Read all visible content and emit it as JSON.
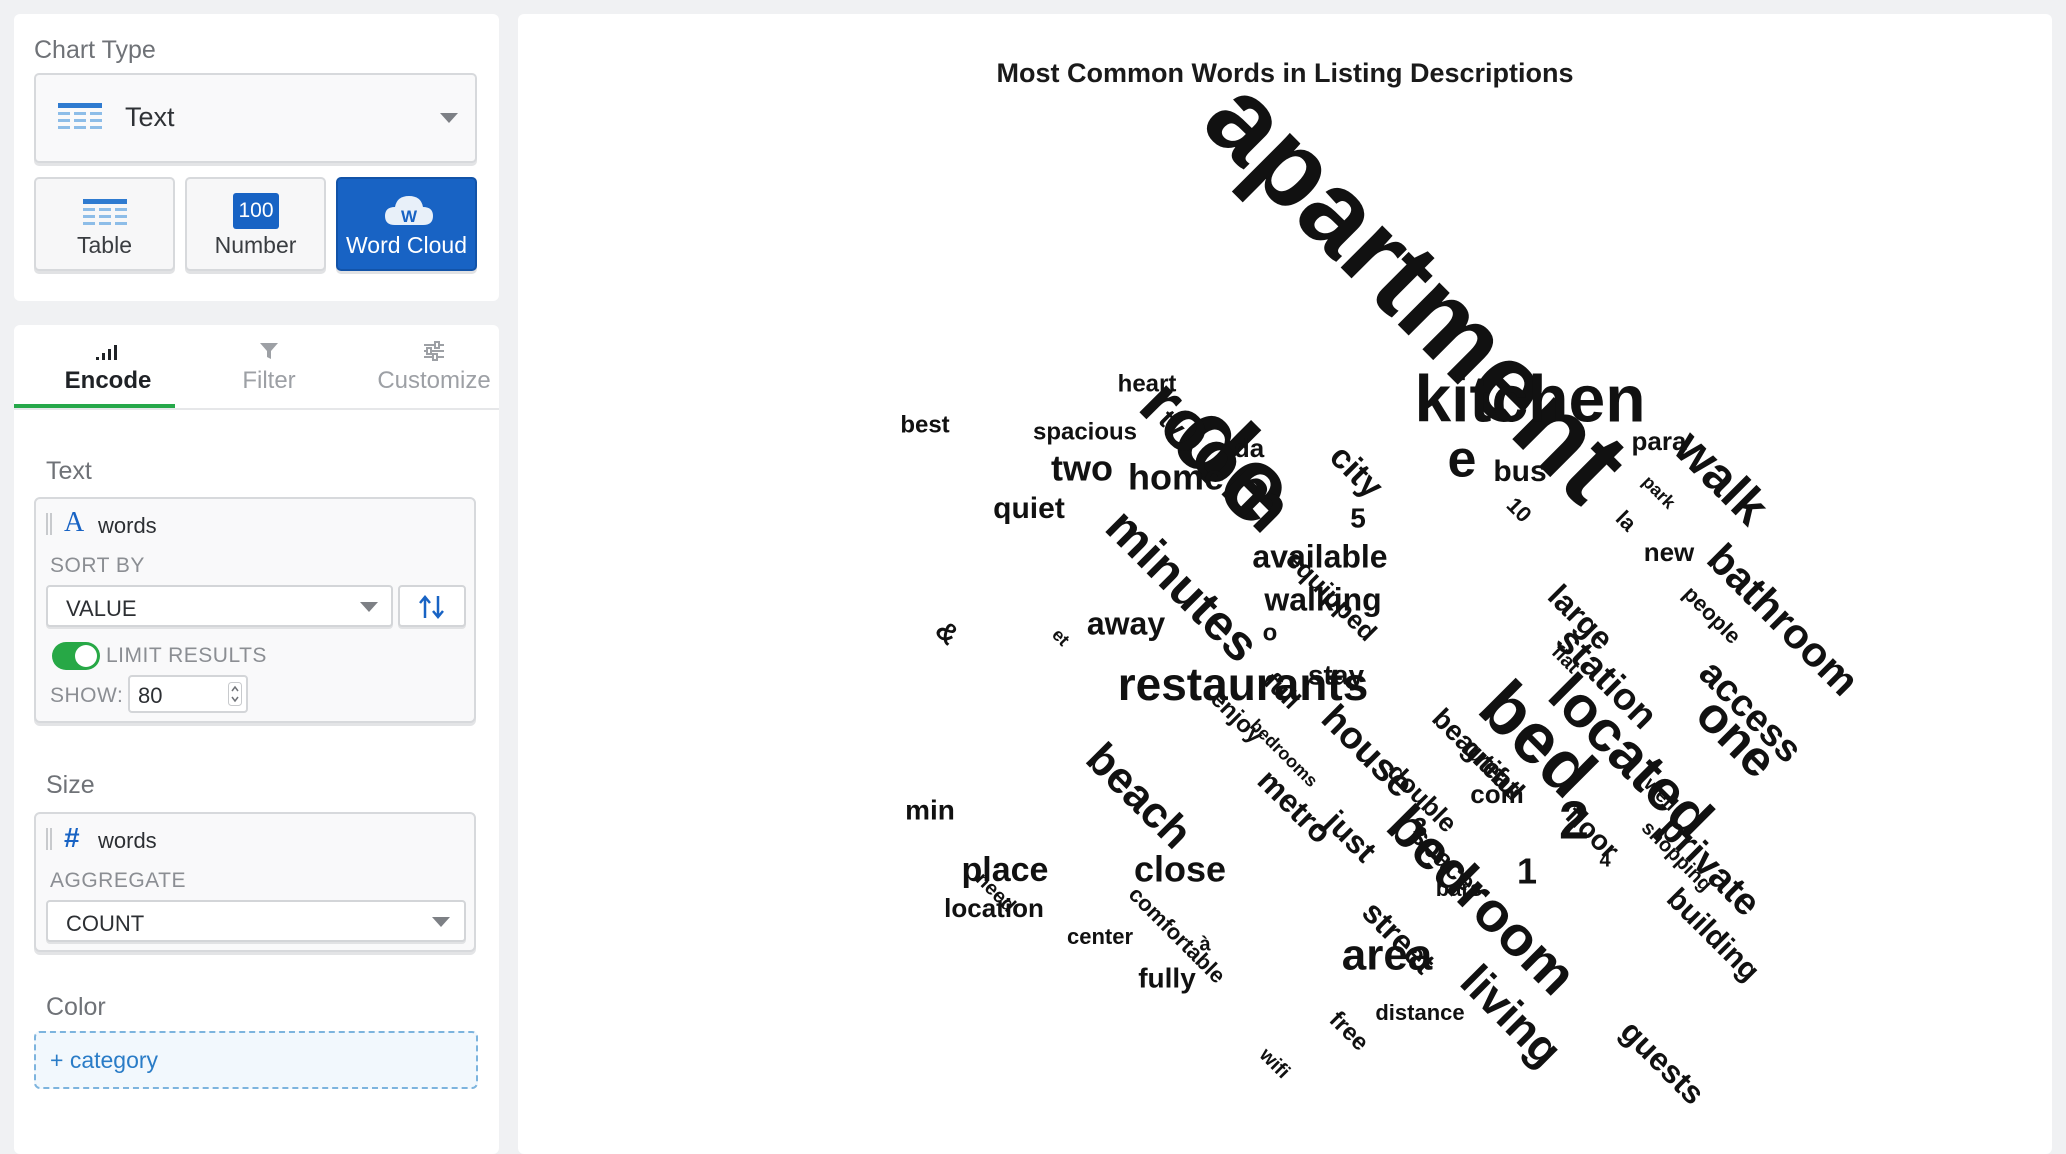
{
  "left_panel": {
    "chart_type_label": "Chart Type",
    "selected_type": "Text",
    "type_icon": "text-lines-icon",
    "type_buttons": [
      {
        "label": "Table",
        "icon": "table-icon"
      },
      {
        "label": "Number",
        "icon": "number-badge-icon",
        "badge": "100"
      },
      {
        "label": "Word Cloud",
        "icon": "cloud-w-icon",
        "badge": "W",
        "active": true
      }
    ]
  },
  "tabs": [
    {
      "label": "Encode",
      "icon": "bar-signal-icon",
      "active": true
    },
    {
      "label": "Filter",
      "icon": "funnel-icon"
    },
    {
      "label": "Customize",
      "icon": "sliders-icon"
    }
  ],
  "encode": {
    "text_section": {
      "label": "Text",
      "field_icon": "A",
      "field": "words",
      "sort_by_label": "SORT BY",
      "sort_value": "VALUE",
      "limit_label": "LIMIT RESULTS",
      "limit_enabled": true,
      "show_label": "SHOW:",
      "show_value": "80"
    },
    "size_section": {
      "label": "Size",
      "field_icon": "#",
      "field": "words",
      "aggregate_label": "AGGREGATE",
      "aggregate_value": "COUNT"
    },
    "color_section": {
      "label": "Color",
      "placeholder": "+ category"
    }
  },
  "accent_colors": {
    "primary": "#1863c4",
    "active_tab": "#26a84a",
    "toggle": "#27a846"
  },
  "chart_data": {
    "type": "wordcloud",
    "title": "Most Common Words in Listing Descriptions",
    "words": [
      {
        "text": "apartment"
      },
      {
        "text": "de"
      },
      {
        "text": "kitchen"
      },
      {
        "text": "room"
      },
      {
        "text": "bed"
      },
      {
        "text": "minutes"
      },
      {
        "text": "walk"
      },
      {
        "text": "bathroom"
      },
      {
        "text": "located"
      },
      {
        "text": "restaurants"
      },
      {
        "text": "bedroom"
      },
      {
        "text": "one"
      },
      {
        "text": "area"
      },
      {
        "text": "living"
      },
      {
        "text": "e"
      },
      {
        "text": "beach"
      },
      {
        "text": "2"
      },
      {
        "text": "house"
      },
      {
        "text": "station"
      },
      {
        "text": "access"
      },
      {
        "text": "private"
      },
      {
        "text": "close"
      },
      {
        "text": "home"
      },
      {
        "text": "two"
      },
      {
        "text": "place"
      },
      {
        "text": "city"
      },
      {
        "text": "available"
      },
      {
        "text": "walking"
      },
      {
        "text": "away"
      },
      {
        "text": "large"
      },
      {
        "text": "metro"
      },
      {
        "text": "just"
      },
      {
        "text": "street"
      },
      {
        "text": "building"
      },
      {
        "text": "guests"
      },
      {
        "text": "bus"
      },
      {
        "text": "quiet"
      },
      {
        "text": "stay"
      },
      {
        "text": "1"
      },
      {
        "text": "beautiful"
      },
      {
        "text": "space"
      },
      {
        "text": "great"
      },
      {
        "text": "equipped"
      },
      {
        "text": "double"
      },
      {
        "text": "floor"
      },
      {
        "text": "min"
      },
      {
        "text": "location"
      },
      {
        "text": "fully"
      },
      {
        "text": "heart"
      },
      {
        "text": "spacious"
      },
      {
        "text": "best"
      },
      {
        "text": "tv"
      },
      {
        "text": "da"
      },
      {
        "text": "para"
      },
      {
        "text": "new"
      },
      {
        "text": "5"
      },
      {
        "text": "&"
      },
      {
        "text": "o"
      },
      {
        "text": "full"
      },
      {
        "text": "enjoy"
      },
      {
        "text": "com"
      },
      {
        "text": "3"
      },
      {
        "text": "bars"
      },
      {
        "text": "distance"
      },
      {
        "text": "free"
      },
      {
        "text": "comfortable"
      },
      {
        "text": "center"
      },
      {
        "text": "people"
      },
      {
        "text": "10"
      },
      {
        "text": "la"
      },
      {
        "text": "park"
      },
      {
        "text": "flat"
      },
      {
        "text": "et"
      },
      {
        "text": "bedrooms"
      },
      {
        "text": "well"
      },
      {
        "text": "shopping"
      },
      {
        "text": "4"
      },
      {
        "text": "need"
      },
      {
        "text": "à"
      },
      {
        "text": "wifi"
      }
    ]
  }
}
